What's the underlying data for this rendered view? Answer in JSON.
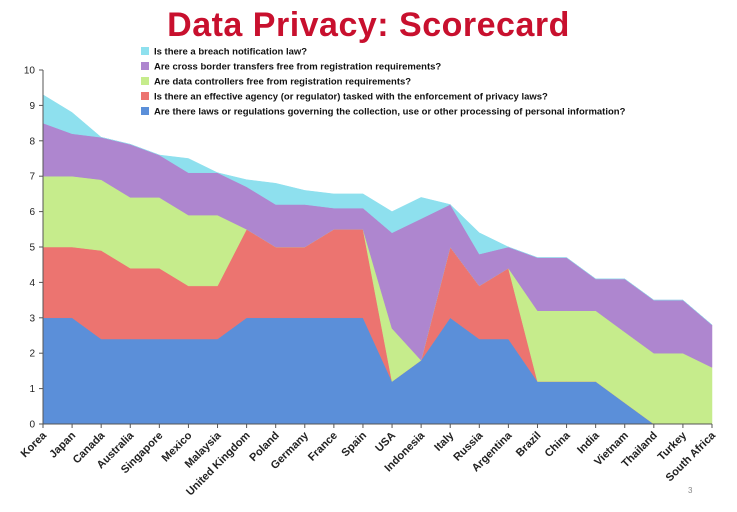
{
  "page": {
    "title": "Data Privacy: Scorecard",
    "page_number": "3"
  },
  "colors": {
    "title": "#c8102e",
    "series": [
      "#5b8fd9",
      "#ec7470",
      "#c6ec8c",
      "#ae86cf",
      "#8ee0ee"
    ]
  },
  "chart_data": {
    "type": "area",
    "stacked": true,
    "title": "Data Privacy: Scorecard",
    "xlabel": "",
    "ylabel": "",
    "ylim": [
      0,
      10
    ],
    "yticks": [
      "0",
      "1",
      "2",
      "3",
      "4",
      "5",
      "6",
      "7",
      "8",
      "9",
      "10"
    ],
    "grid": false,
    "legend_position": "top",
    "categories": [
      "Korea",
      "Japan",
      "Canada",
      "Australia",
      "Singapore",
      "Mexico",
      "Malaysia",
      "United Kingdom",
      "Poland",
      "Germany",
      "France",
      "Spain",
      "USA",
      "Indonesia",
      "Italy",
      "Russia",
      "Argentina",
      "Brazil",
      "China",
      "India",
      "Vietnam",
      "Thailand",
      "Turkey",
      "South Africa"
    ],
    "series": [
      {
        "name": "Are there laws or regulations governing the collection, use or other processing of personal information?",
        "values": [
          3.0,
          3.0,
          2.4,
          2.4,
          2.4,
          2.4,
          2.4,
          3.0,
          3.0,
          3.0,
          3.0,
          3.0,
          1.2,
          1.8,
          3.0,
          2.4,
          2.4,
          1.2,
          1.2,
          1.2,
          0.6,
          0.0,
          0.0,
          0.0
        ]
      },
      {
        "name": "Is there an effective agency (or regulator) tasked with the enforcement of privacy laws?",
        "values": [
          2.0,
          2.0,
          2.5,
          2.0,
          2.0,
          1.5,
          1.5,
          2.5,
          2.0,
          2.0,
          2.5,
          2.5,
          0.0,
          0.0,
          2.0,
          1.5,
          2.0,
          0.0,
          0.0,
          0.0,
          0.0,
          0.0,
          0.0,
          0.0
        ]
      },
      {
        "name": "Are data controllers free from registration requirements?",
        "values": [
          2.0,
          2.0,
          2.0,
          2.0,
          2.0,
          2.0,
          2.0,
          0.0,
          0.0,
          0.0,
          0.0,
          0.0,
          1.5,
          0.0,
          0.0,
          0.0,
          0.0,
          2.0,
          2.0,
          2.0,
          2.0,
          2.0,
          2.0,
          1.6
        ]
      },
      {
        "name": "Are cross border transfers free from registration requirements?",
        "values": [
          1.5,
          1.2,
          1.2,
          1.5,
          1.2,
          1.2,
          1.2,
          1.2,
          1.2,
          1.2,
          0.6,
          0.6,
          2.7,
          4.0,
          1.2,
          0.9,
          0.6,
          1.5,
          1.5,
          0.9,
          1.5,
          1.5,
          1.5,
          1.2
        ]
      },
      {
        "name": "Is there a breach notification law?",
        "values": [
          0.8,
          0.6,
          0.0,
          0.0,
          0.0,
          0.4,
          0.0,
          0.2,
          0.6,
          0.4,
          0.4,
          0.4,
          0.6,
          0.6,
          0.0,
          0.6,
          0.0,
          0.0,
          0.0,
          0.0,
          0.0,
          0.0,
          0.0,
          0.0
        ]
      }
    ]
  }
}
